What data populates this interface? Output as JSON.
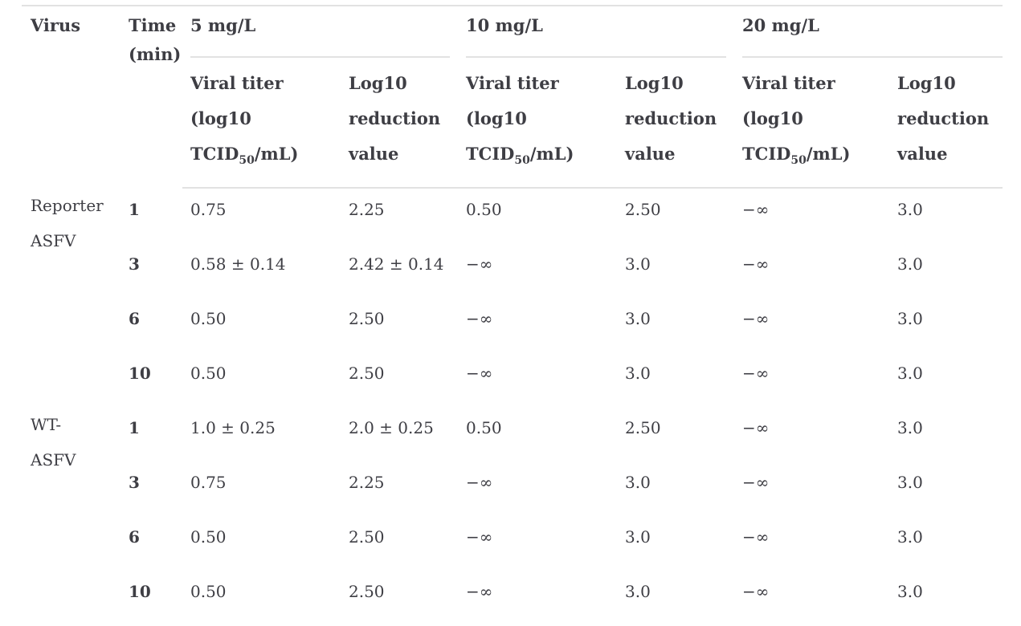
{
  "header": {
    "virus": "Virus",
    "time_line1": "Time",
    "time_line2": "(min)",
    "concentration_groups": [
      "5 mg/L",
      "10 mg/L",
      "20 mg/L"
    ],
    "subheader": {
      "titer_line1": "Viral titer",
      "titer_line2": "(log10",
      "titer_line3_pre": "TCID",
      "titer_line3_sub": "50",
      "titer_line3_post": "/mL)",
      "lrv_line1": "Log10",
      "lrv_line2": "reduction",
      "lrv_line3": "value"
    }
  },
  "body": [
    {
      "virus_line1": "Reporter",
      "virus_line2": "ASFV",
      "rows": [
        {
          "time": "1",
          "t5": "0.75",
          "r5": "2.25",
          "t10": "0.50",
          "r10": "2.50",
          "t20": "−∞",
          "r20": "3.0"
        },
        {
          "time": "3",
          "t5": "0.58 ± 0.14",
          "r5": "2.42 ± 0.14",
          "t10": "−∞",
          "r10": "3.0",
          "t20": "−∞",
          "r20": "3.0"
        },
        {
          "time": "6",
          "t5": "0.50",
          "r5": "2.50",
          "t10": "−∞",
          "r10": "3.0",
          "t20": "−∞",
          "r20": "3.0"
        },
        {
          "time": "10",
          "t5": "0.50",
          "r5": "2.50",
          "t10": "−∞",
          "r10": "3.0",
          "t20": "−∞",
          "r20": "3.0"
        }
      ]
    },
    {
      "virus_line1": "WT-",
      "virus_line2": "ASFV",
      "rows": [
        {
          "time": "1",
          "t5": "1.0 ± 0.25",
          "r5": "2.0 ± 0.25",
          "t10": "0.50",
          "r10": "2.50",
          "t20": "−∞",
          "r20": "3.0"
        },
        {
          "time": "3",
          "t5": "0.75",
          "r5": "2.25",
          "t10": "−∞",
          "r10": "3.0",
          "t20": "−∞",
          "r20": "3.0"
        },
        {
          "time": "6",
          "t5": "0.50",
          "r5": "2.50",
          "t10": "−∞",
          "r10": "3.0",
          "t20": "−∞",
          "r20": "3.0"
        },
        {
          "time": "10",
          "t5": "0.50",
          "r5": "2.50",
          "t10": "−∞",
          "r10": "3.0",
          "t20": "−∞",
          "r20": "3.0"
        }
      ]
    }
  ],
  "colors": {
    "text": "#3e3e44",
    "rule": "#e2e2e2",
    "background": "#ffffff"
  }
}
